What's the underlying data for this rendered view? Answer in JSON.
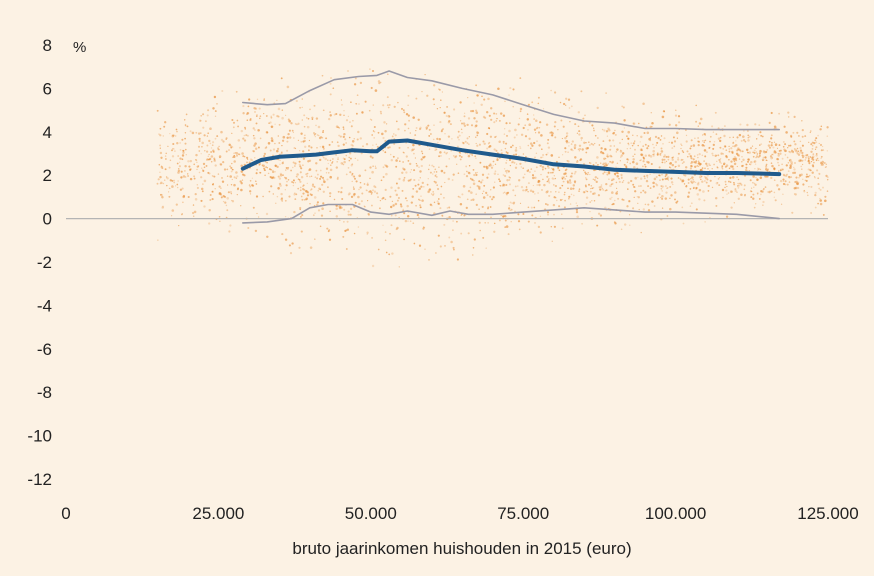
{
  "chart_data": {
    "type": "scatter",
    "title": "",
    "unit_label": "%",
    "xlabel": "bruto jaarinkomen huishouden in 2015 (euro)",
    "ylabel": "",
    "xlim": [
      0,
      125000
    ],
    "ylim": [
      -12,
      8
    ],
    "x_ticks": [
      0,
      25000,
      50000,
      75000,
      100000,
      125000
    ],
    "x_tick_labels": [
      "0",
      "25.000",
      "50.000",
      "75.000",
      "100.000",
      "125.000"
    ],
    "y_ticks": [
      8,
      6,
      4,
      2,
      0,
      -2,
      -4,
      -6,
      -8,
      -10,
      -12
    ],
    "y_tick_labels": [
      "8",
      "6",
      "4",
      "2",
      "0",
      "-2",
      "-4",
      "-6",
      "-8",
      "-10",
      "-12"
    ],
    "grid": false,
    "legend": "none",
    "colors": {
      "background": "#fcf2e4",
      "scatter": "#e8903a",
      "median_line": "#1f5a8c",
      "band_lines": "#9a9aa8",
      "zero_line": "#b4b4b4"
    },
    "scatter_cloud": {
      "x_range": [
        15000,
        125000
      ],
      "y_center": 2.5,
      "y_spread": 1.6,
      "description_count": 3000
    },
    "series": [
      {
        "role": "median",
        "x": [
          29000,
          32000,
          35000,
          38000,
          41000,
          44000,
          47000,
          50000,
          51000,
          53000,
          56000,
          60000,
          65000,
          70000,
          75000,
          80000,
          85000,
          90000,
          95000,
          100000,
          105000,
          110000,
          117000
        ],
        "y": [
          2.3,
          2.7,
          2.85,
          2.9,
          2.95,
          3.05,
          3.15,
          3.1,
          3.1,
          3.55,
          3.6,
          3.4,
          3.15,
          2.95,
          2.75,
          2.5,
          2.4,
          2.25,
          2.2,
          2.15,
          2.1,
          2.1,
          2.05
        ]
      },
      {
        "role": "upper",
        "x": [
          29000,
          33000,
          36000,
          40000,
          44000,
          48000,
          51000,
          53000,
          56000,
          60000,
          65000,
          70000,
          75000,
          80000,
          85000,
          90000,
          95000,
          100000,
          105000,
          110000,
          117000
        ],
        "y": [
          5.35,
          5.25,
          5.3,
          5.9,
          6.4,
          6.55,
          6.6,
          6.8,
          6.5,
          6.35,
          6.0,
          5.7,
          5.25,
          4.8,
          4.5,
          4.4,
          4.15,
          4.15,
          4.1,
          4.1,
          4.1
        ]
      },
      {
        "role": "lower",
        "x": [
          29000,
          33000,
          37000,
          40000,
          43000,
          47000,
          50000,
          53000,
          56000,
          60000,
          63000,
          66000,
          70000,
          75000,
          80000,
          85000,
          90000,
          95000,
          100000,
          105000,
          110000,
          117000
        ],
        "y": [
          -0.2,
          -0.15,
          0.0,
          0.5,
          0.65,
          0.65,
          0.3,
          0.2,
          0.35,
          0.15,
          0.35,
          0.2,
          0.2,
          0.3,
          0.4,
          0.5,
          0.4,
          0.3,
          0.3,
          0.25,
          0.2,
          0.0
        ]
      }
    ]
  }
}
